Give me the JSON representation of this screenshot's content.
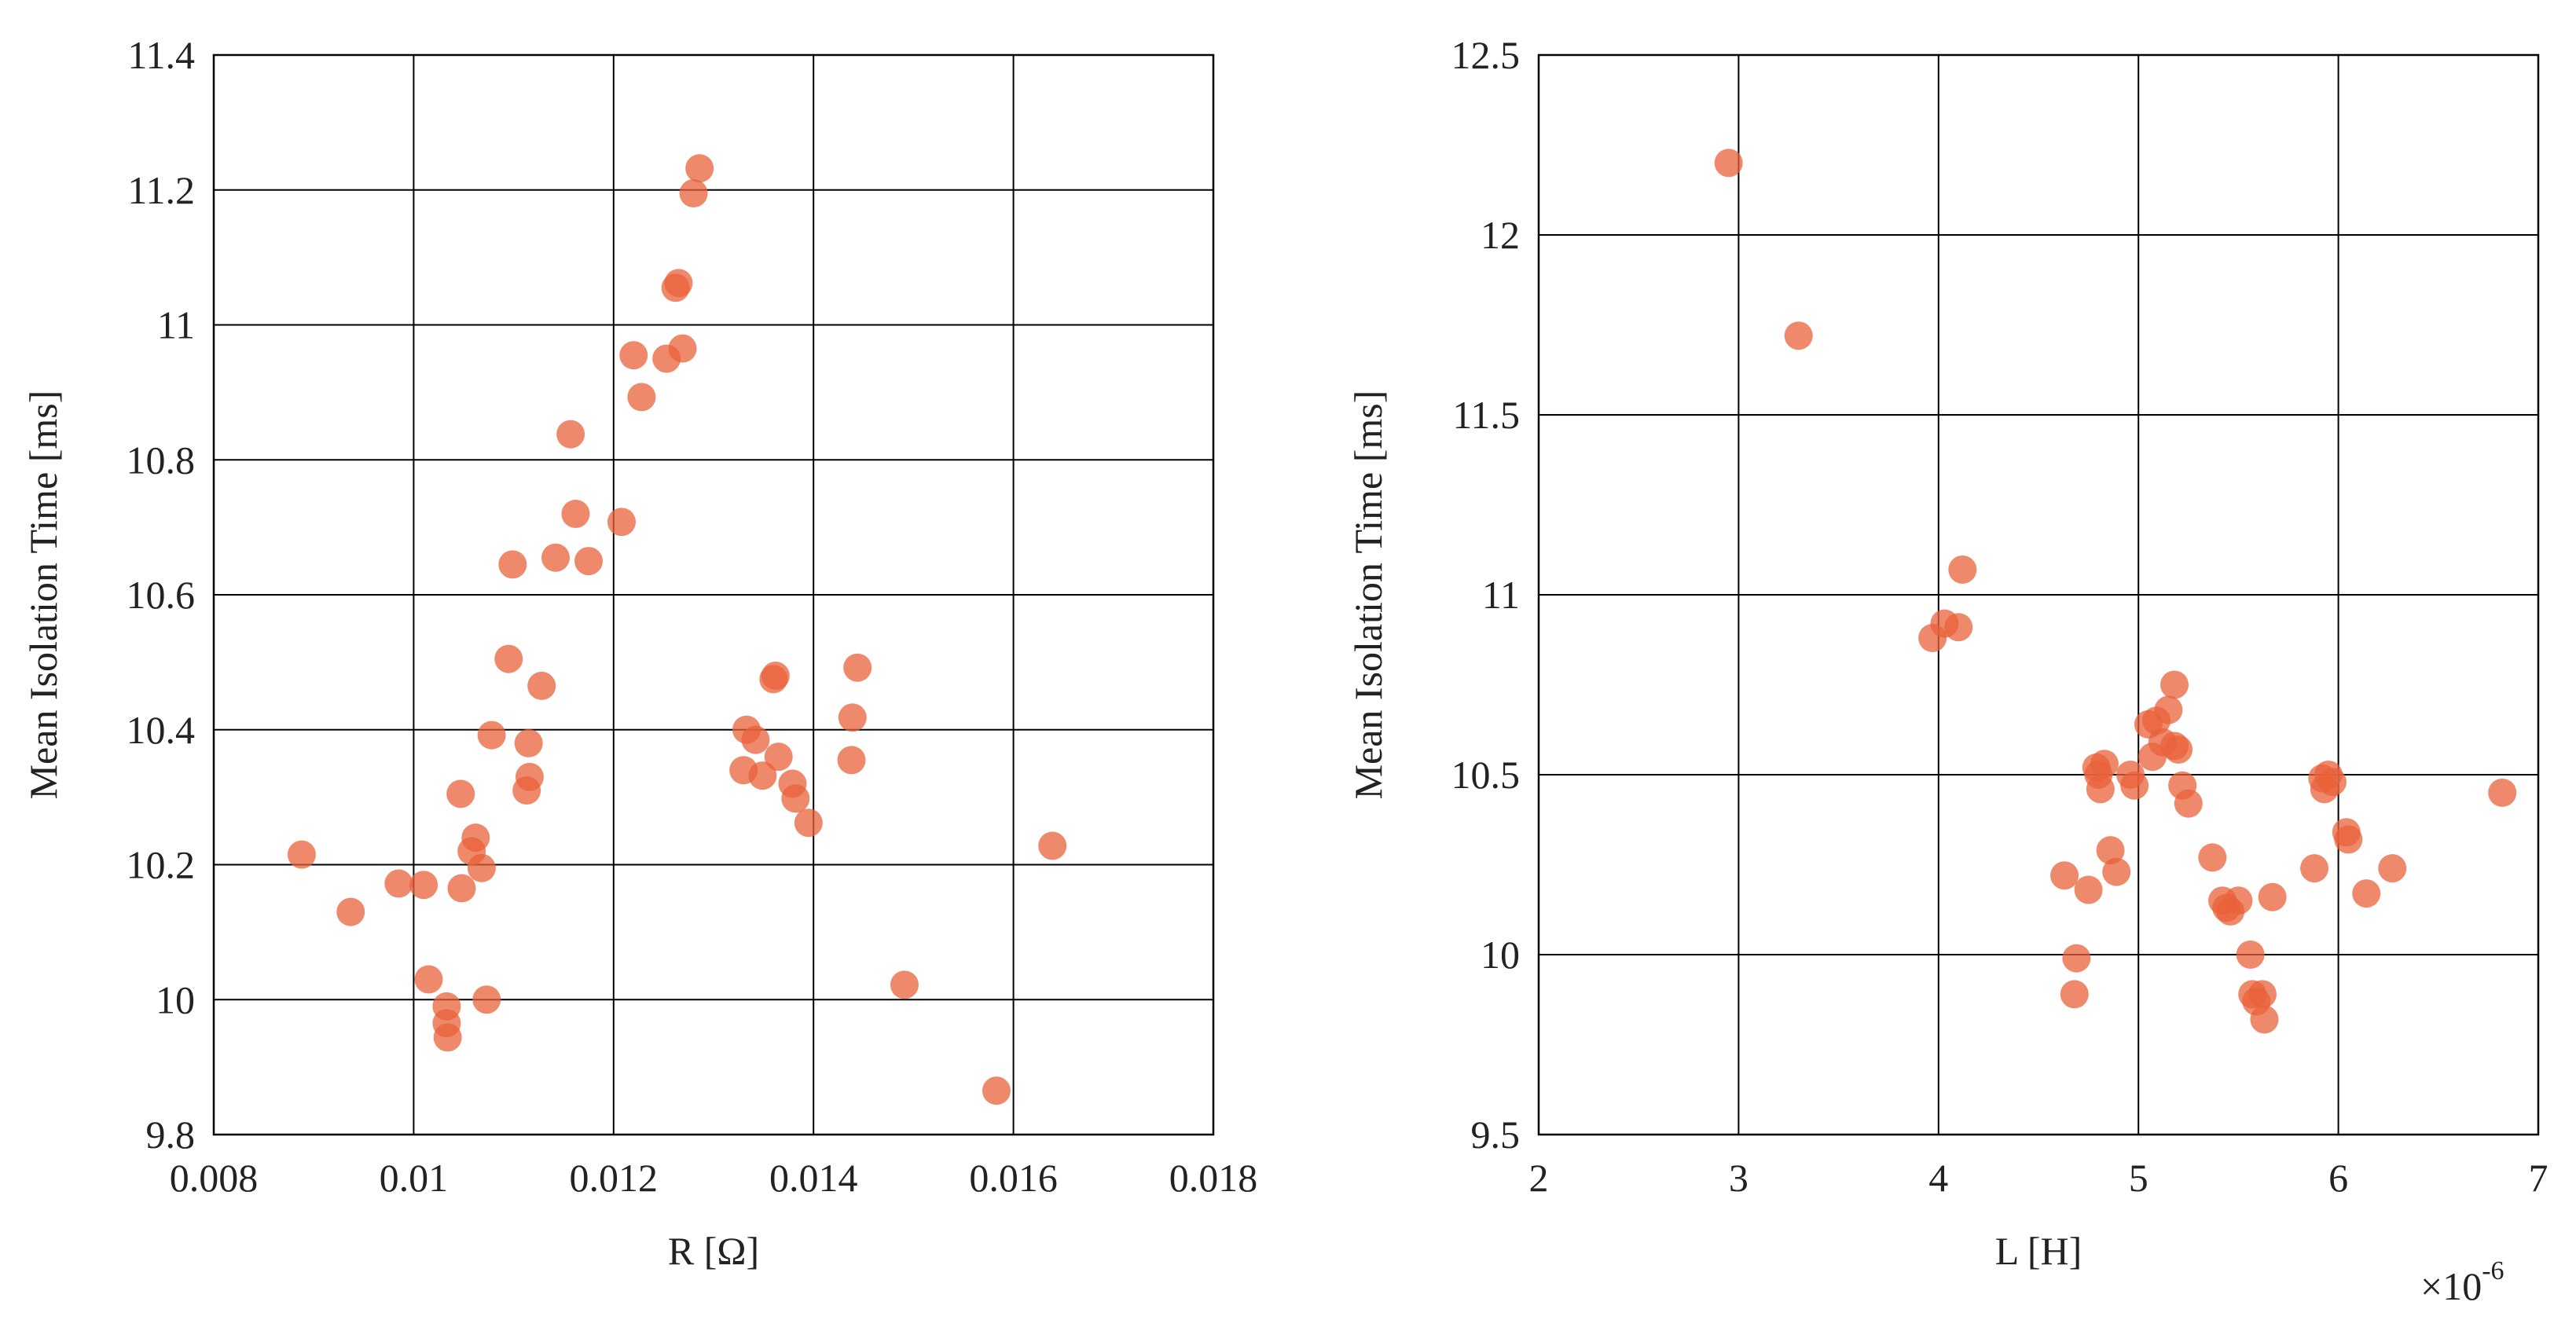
{
  "chart_data": [
    {
      "type": "scatter",
      "xlabel": "R [Ω]",
      "ylabel": "Mean Isolation Time [ms]",
      "xlim": [
        0.008,
        0.018
      ],
      "ylim": [
        9.8,
        11.4
      ],
      "xticks": [
        "0.008",
        "0.01",
        "0.012",
        "0.014",
        "0.016",
        "0.018"
      ],
      "yticks": [
        "9.8",
        "10",
        "10.2",
        "10.4",
        "10.6",
        "10.8",
        "11",
        "11.2",
        "11.4"
      ],
      "grid": true,
      "marker_color": "#e8623a",
      "points": [
        [
          0.00888,
          10.215
        ],
        [
          0.00937,
          10.13
        ],
        [
          0.00985,
          10.172
        ],
        [
          0.0101,
          10.17
        ],
        [
          0.01015,
          10.03
        ],
        [
          0.01033,
          9.99
        ],
        [
          0.01033,
          9.965
        ],
        [
          0.01034,
          9.944
        ],
        [
          0.01047,
          10.305
        ],
        [
          0.01048,
          10.165
        ],
        [
          0.01058,
          10.22
        ],
        [
          0.01062,
          10.24
        ],
        [
          0.01068,
          10.195
        ],
        [
          0.01073,
          10.0
        ],
        [
          0.01078,
          10.392
        ],
        [
          0.01095,
          10.505
        ],
        [
          0.01099,
          10.645
        ],
        [
          0.01113,
          10.31
        ],
        [
          0.01115,
          10.38
        ],
        [
          0.01116,
          10.33
        ],
        [
          0.01128,
          10.465
        ],
        [
          0.01142,
          10.655
        ],
        [
          0.01157,
          10.838
        ],
        [
          0.01162,
          10.72
        ],
        [
          0.01175,
          10.65
        ],
        [
          0.01208,
          10.708
        ],
        [
          0.0122,
          10.955
        ],
        [
          0.01228,
          10.893
        ],
        [
          0.01253,
          10.95
        ],
        [
          0.01262,
          11.055
        ],
        [
          0.01265,
          11.062
        ],
        [
          0.01269,
          10.965
        ],
        [
          0.0128,
          11.195
        ],
        [
          0.01286,
          11.232
        ],
        [
          0.0133,
          10.34
        ],
        [
          0.01333,
          10.4
        ],
        [
          0.01342,
          10.385
        ],
        [
          0.01349,
          10.332
        ],
        [
          0.0136,
          10.475
        ],
        [
          0.01362,
          10.48
        ],
        [
          0.01365,
          10.36
        ],
        [
          0.01379,
          10.32
        ],
        [
          0.01382,
          10.298
        ],
        [
          0.01395,
          10.262
        ],
        [
          0.01438,
          10.355
        ],
        [
          0.01439,
          10.418
        ],
        [
          0.01444,
          10.492
        ],
        [
          0.01491,
          10.022
        ],
        [
          0.01583,
          9.865
        ],
        [
          0.01639,
          10.228
        ]
      ]
    },
    {
      "type": "scatter",
      "xlabel": "L [H]",
      "ylabel": "Mean Isolation Time [ms]",
      "xlim": [
        2,
        7
      ],
      "ylim": [
        9.5,
        12.5
      ],
      "xticks": [
        "2",
        "3",
        "4",
        "5",
        "6",
        "7"
      ],
      "yticks": [
        "9.5",
        "10",
        "10.5",
        "11",
        "11.5",
        "12",
        "12.5"
      ],
      "x_multiplier": "×10",
      "x_multiplier_exp": "-6",
      "grid": true,
      "marker_color": "#e8623a",
      "points": [
        [
          2.95,
          12.2
        ],
        [
          3.3,
          11.72
        ],
        [
          3.97,
          10.88
        ],
        [
          4.03,
          10.92
        ],
        [
          4.1,
          10.91
        ],
        [
          4.12,
          11.07
        ],
        [
          4.63,
          10.22
        ],
        [
          4.68,
          9.89
        ],
        [
          4.69,
          9.99
        ],
        [
          4.75,
          10.18
        ],
        [
          4.79,
          10.52
        ],
        [
          4.8,
          10.5
        ],
        [
          4.81,
          10.46
        ],
        [
          4.83,
          10.53
        ],
        [
          4.86,
          10.29
        ],
        [
          4.89,
          10.23
        ],
        [
          4.96,
          10.5
        ],
        [
          4.98,
          10.47
        ],
        [
          5.05,
          10.64
        ],
        [
          5.07,
          10.55
        ],
        [
          5.09,
          10.65
        ],
        [
          5.12,
          10.59
        ],
        [
          5.15,
          10.68
        ],
        [
          5.18,
          10.75
        ],
        [
          5.18,
          10.58
        ],
        [
          5.2,
          10.57
        ],
        [
          5.22,
          10.47
        ],
        [
          5.25,
          10.42
        ],
        [
          5.37,
          10.27
        ],
        [
          5.42,
          10.15
        ],
        [
          5.44,
          10.13
        ],
        [
          5.46,
          10.12
        ],
        [
          5.5,
          10.15
        ],
        [
          5.56,
          10.0
        ],
        [
          5.57,
          9.89
        ],
        [
          5.59,
          9.87
        ],
        [
          5.62,
          9.89
        ],
        [
          5.63,
          9.82
        ],
        [
          5.67,
          10.16
        ],
        [
          5.88,
          10.24
        ],
        [
          5.92,
          10.49
        ],
        [
          5.93,
          10.46
        ],
        [
          5.95,
          10.5
        ],
        [
          5.97,
          10.48
        ],
        [
          6.04,
          10.34
        ],
        [
          6.05,
          10.32
        ],
        [
          6.14,
          10.17
        ],
        [
          6.27,
          10.24
        ],
        [
          6.82,
          10.45
        ]
      ]
    }
  ]
}
